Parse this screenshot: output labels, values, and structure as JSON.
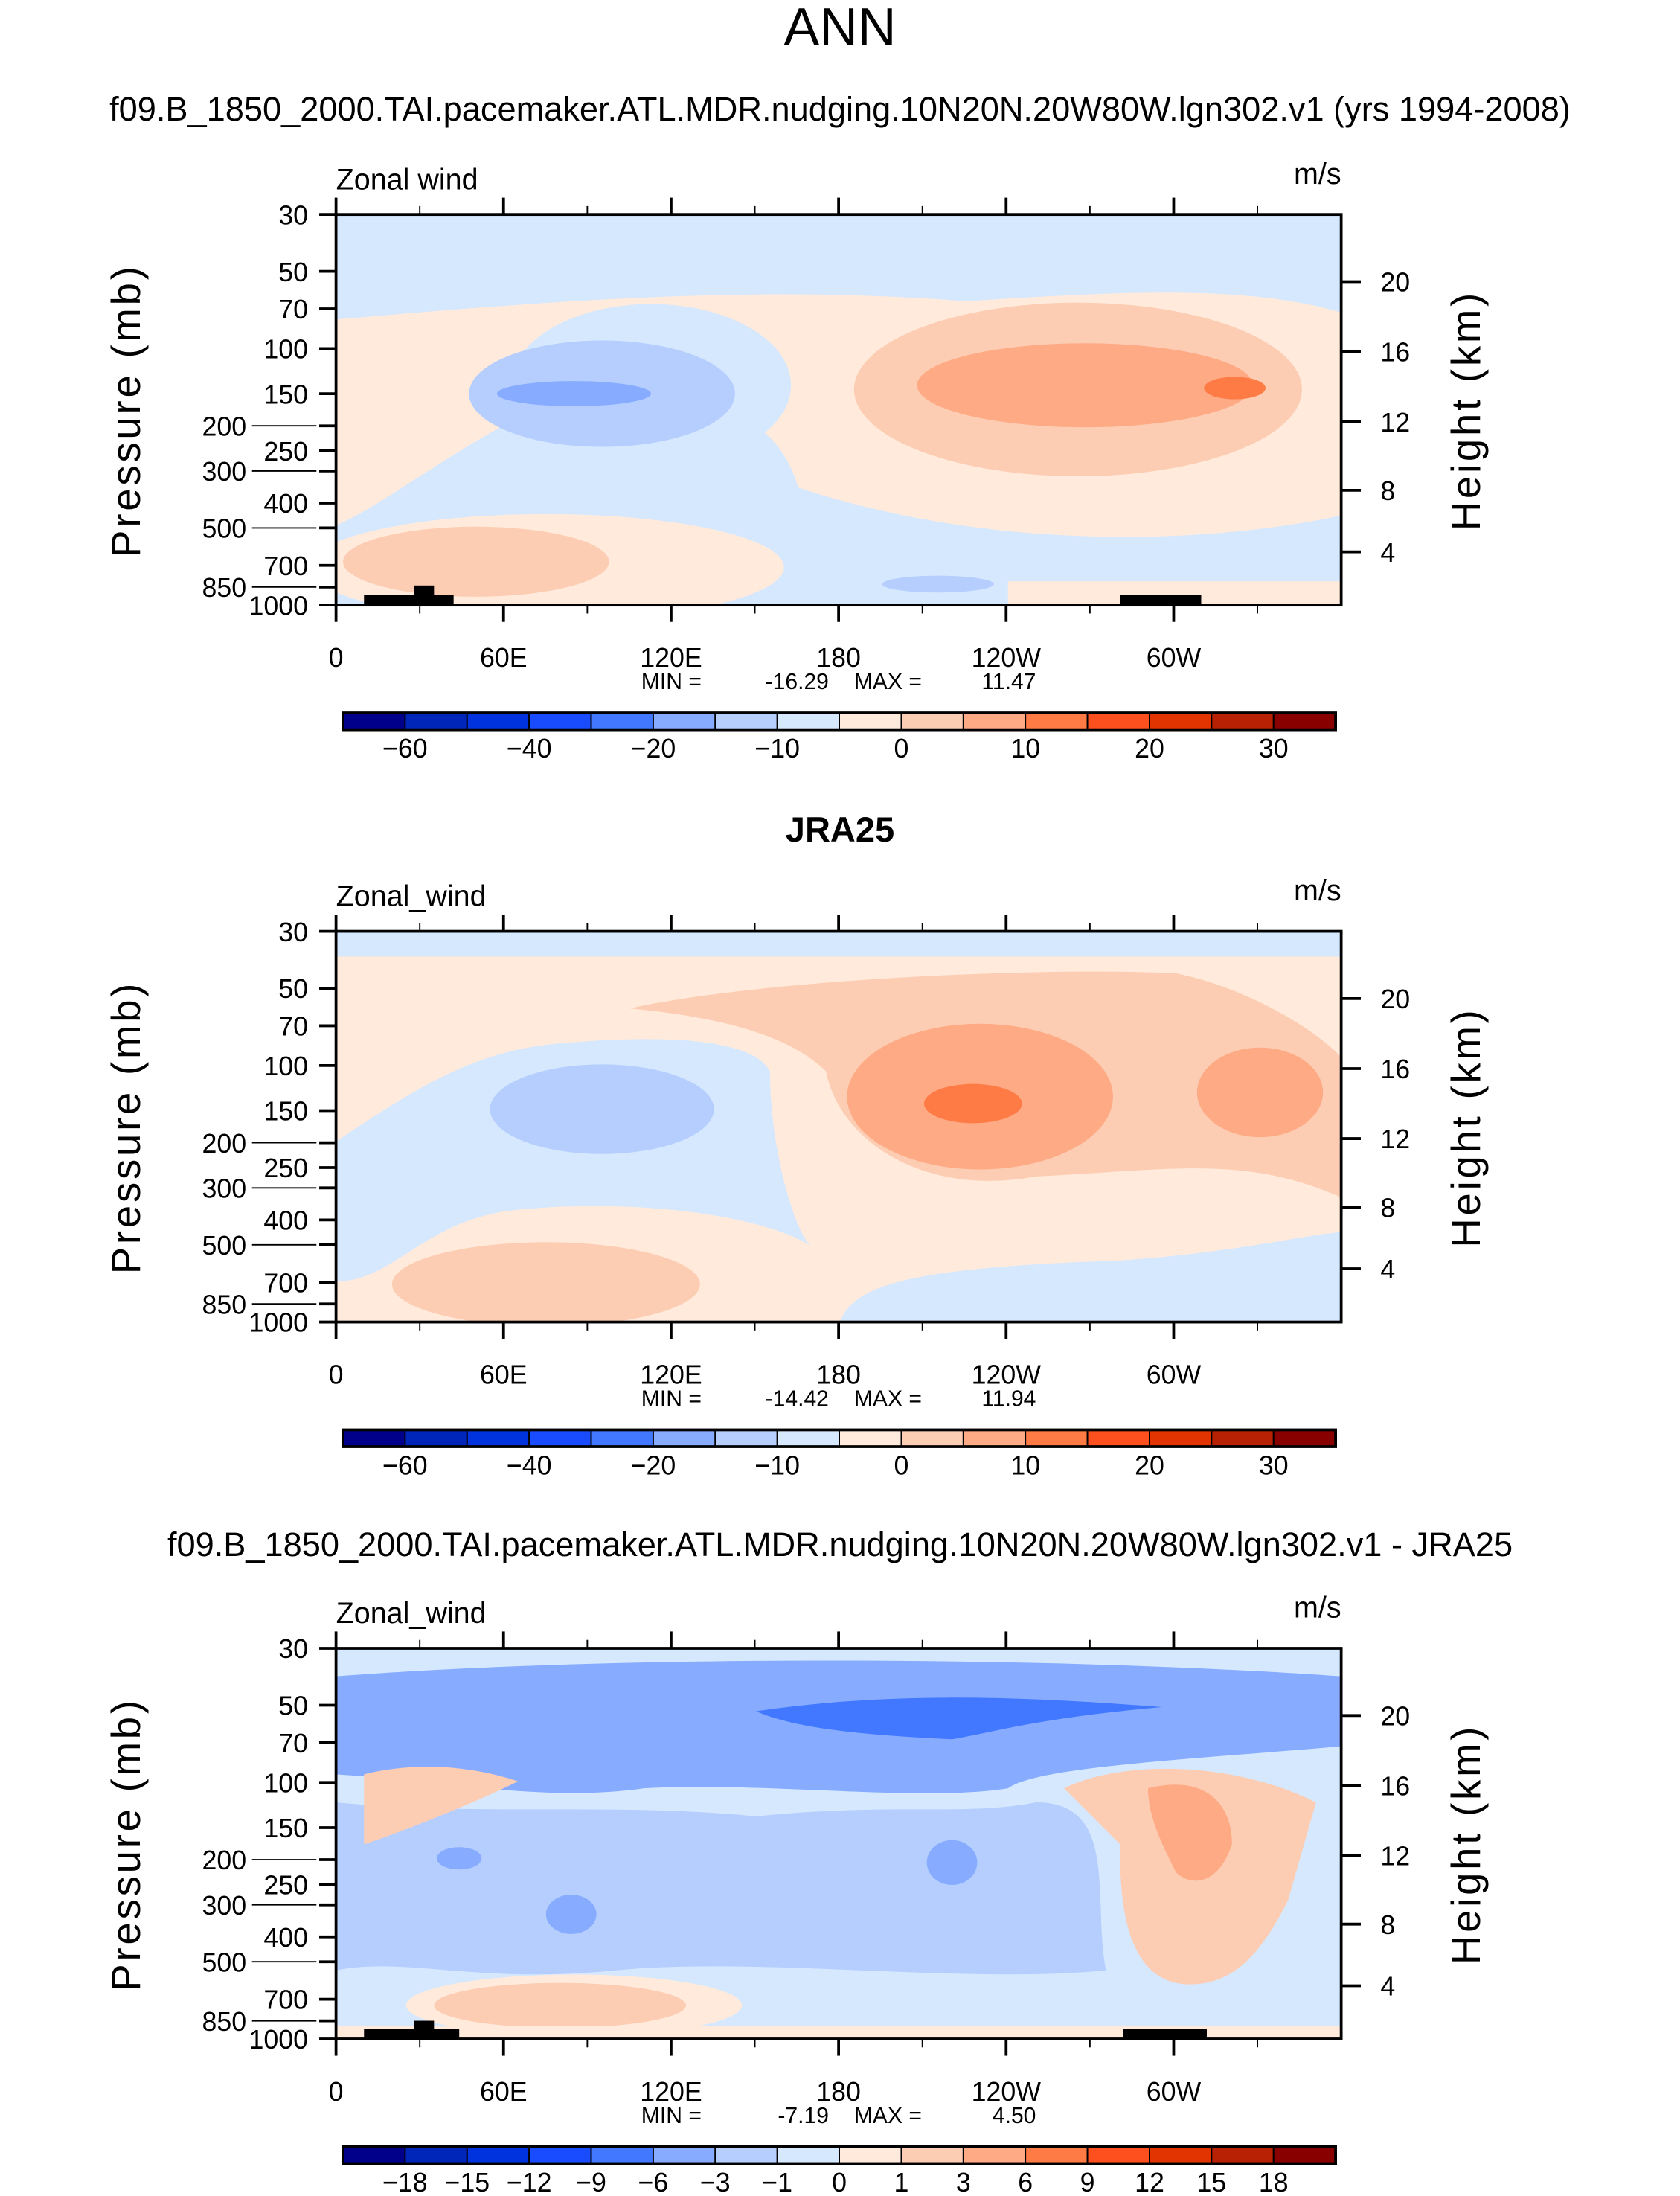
{
  "page_title": "ANN",
  "chart_data": [
    {
      "type": "heatmap",
      "title": "f09.B_1850_2000.TAI.pacemaker.ATL.MDR.nudging.10N20N.20W80W.lgn302.v1 (yrs 1994-2008)",
      "bold_title": false,
      "left_label": "Zonal wind",
      "right_label": "m/s",
      "ylabel": "Pressure (mb)",
      "ylabel_right": "Height (km)",
      "x_ticks": [
        "0",
        "60E",
        "120E",
        "180",
        "120W",
        "60W"
      ],
      "y_ticks": [
        "30",
        "50",
        "70",
        "100",
        "150",
        "200",
        "250",
        "300",
        "400",
        "500",
        "700",
        "850",
        "1000"
      ],
      "y_right_ticks": [
        "20",
        "16",
        "12",
        "8",
        "4"
      ],
      "min_label": "MIN =",
      "min": "-16.29",
      "max_label": "MAX =",
      "max": "11.47",
      "colorbar_labels": [
        "-60",
        "-40",
        "-20",
        "-10",
        "0",
        "10",
        "20",
        "30"
      ],
      "ylim": [
        1000,
        30
      ],
      "xlim": [
        0,
        360
      ]
    },
    {
      "type": "heatmap",
      "title": "JRA25",
      "bold_title": true,
      "left_label": "Zonal_wind",
      "right_label": "m/s",
      "ylabel": "Pressure (mb)",
      "ylabel_right": "Height (km)",
      "x_ticks": [
        "0",
        "60E",
        "120E",
        "180",
        "120W",
        "60W"
      ],
      "y_ticks": [
        "30",
        "50",
        "70",
        "100",
        "150",
        "200",
        "250",
        "300",
        "400",
        "500",
        "700",
        "850",
        "1000"
      ],
      "y_right_ticks": [
        "20",
        "16",
        "12",
        "8",
        "4"
      ],
      "min_label": "MIN =",
      "min": "-14.42",
      "max_label": "MAX =",
      "max": "11.94",
      "colorbar_labels": [
        "-60",
        "-40",
        "-20",
        "-10",
        "0",
        "10",
        "20",
        "30"
      ],
      "ylim": [
        1000,
        30
      ],
      "xlim": [
        0,
        360
      ]
    },
    {
      "type": "heatmap",
      "title": "f09.B_1850_2000.TAI.pacemaker.ATL.MDR.nudging.10N20N.20W80W.lgn302.v1 - JRA25",
      "bold_title": false,
      "left_label": "Zonal_wind",
      "right_label": "m/s",
      "ylabel": "Pressure (mb)",
      "ylabel_right": "Height (km)",
      "x_ticks": [
        "0",
        "60E",
        "120E",
        "180",
        "120W",
        "60W"
      ],
      "y_ticks": [
        "30",
        "50",
        "70",
        "100",
        "150",
        "200",
        "250",
        "300",
        "400",
        "500",
        "700",
        "850",
        "1000"
      ],
      "y_right_ticks": [
        "20",
        "16",
        "12",
        "8",
        "4"
      ],
      "min_label": "MIN =",
      "min": "-7.19",
      "max_label": "MAX =",
      "max": "4.50",
      "colorbar_labels": [
        "-18",
        "-15",
        "-12",
        "-9",
        "-6",
        "-3",
        "-1",
        "0",
        "1",
        "3",
        "6",
        "9",
        "12",
        "15",
        "18"
      ],
      "ylim": [
        1000,
        30
      ],
      "xlim": [
        0,
        360
      ]
    }
  ],
  "colormap": [
    "#00008a",
    "#0025b9",
    "#0033dd",
    "#1a4cff",
    "#4278ff",
    "#86abff",
    "#b5cefd",
    "#d5e8fe",
    "#ffeadb",
    "#fdcdb3",
    "#fdaa85",
    "#fe7b46",
    "#fe4f1e",
    "#e13400",
    "#b82103",
    "#880000"
  ]
}
